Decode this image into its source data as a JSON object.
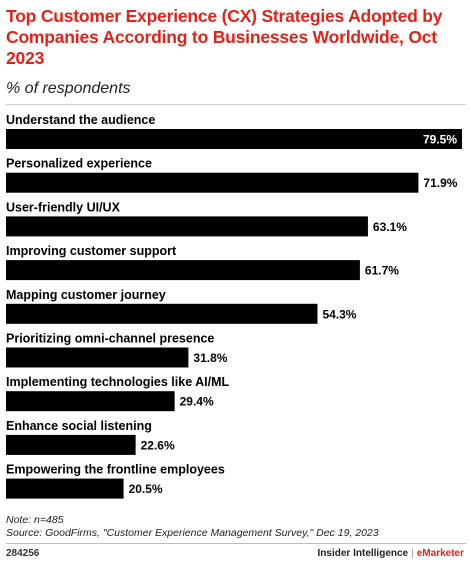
{
  "title": "Top Customer Experience (CX) Strategies Adopted by Companies According to Businesses Worldwide, Oct 2023",
  "subtitle": "% of respondents",
  "chart_data": {
    "type": "bar",
    "orientation": "horizontal",
    "title": "Top Customer Experience (CX) Strategies Adopted by Companies According to Businesses Worldwide, Oct 2023",
    "subtitle": "% of respondents",
    "categories": [
      "Understand the audience",
      "Personalized experience",
      "User-friendly UI/UX",
      "Improving customer support",
      "Mapping customer journey",
      "Prioritizing omni-channel presence",
      "Implementing technologies like AI/ML",
      "Enhance social listening",
      "Empowering the frontline employees"
    ],
    "values": [
      79.5,
      71.9,
      63.1,
      61.7,
      54.3,
      31.8,
      29.4,
      22.6,
      20.5
    ],
    "value_labels": [
      "79.5%",
      "71.9%",
      "63.1%",
      "61.7%",
      "54.3%",
      "31.8%",
      "29.4%",
      "22.6%",
      "20.5%"
    ],
    "xlim": [
      0,
      79.5
    ],
    "grid": false,
    "legend": "none",
    "bar_color": "#000000"
  },
  "notes": {
    "note": "Note: n=485",
    "source": "Source: GoodFirms, \"Customer Experience Management Survey,\" Dec 19, 2023"
  },
  "footer": {
    "chart_id": "284256",
    "brand_left": "Insider Intelligence",
    "separator": "|",
    "brand_right": "eMarketer"
  },
  "colors": {
    "title": "#e2231a",
    "bar": "#000000",
    "label_inside": "#ffffff",
    "label_outside": "#000000"
  }
}
